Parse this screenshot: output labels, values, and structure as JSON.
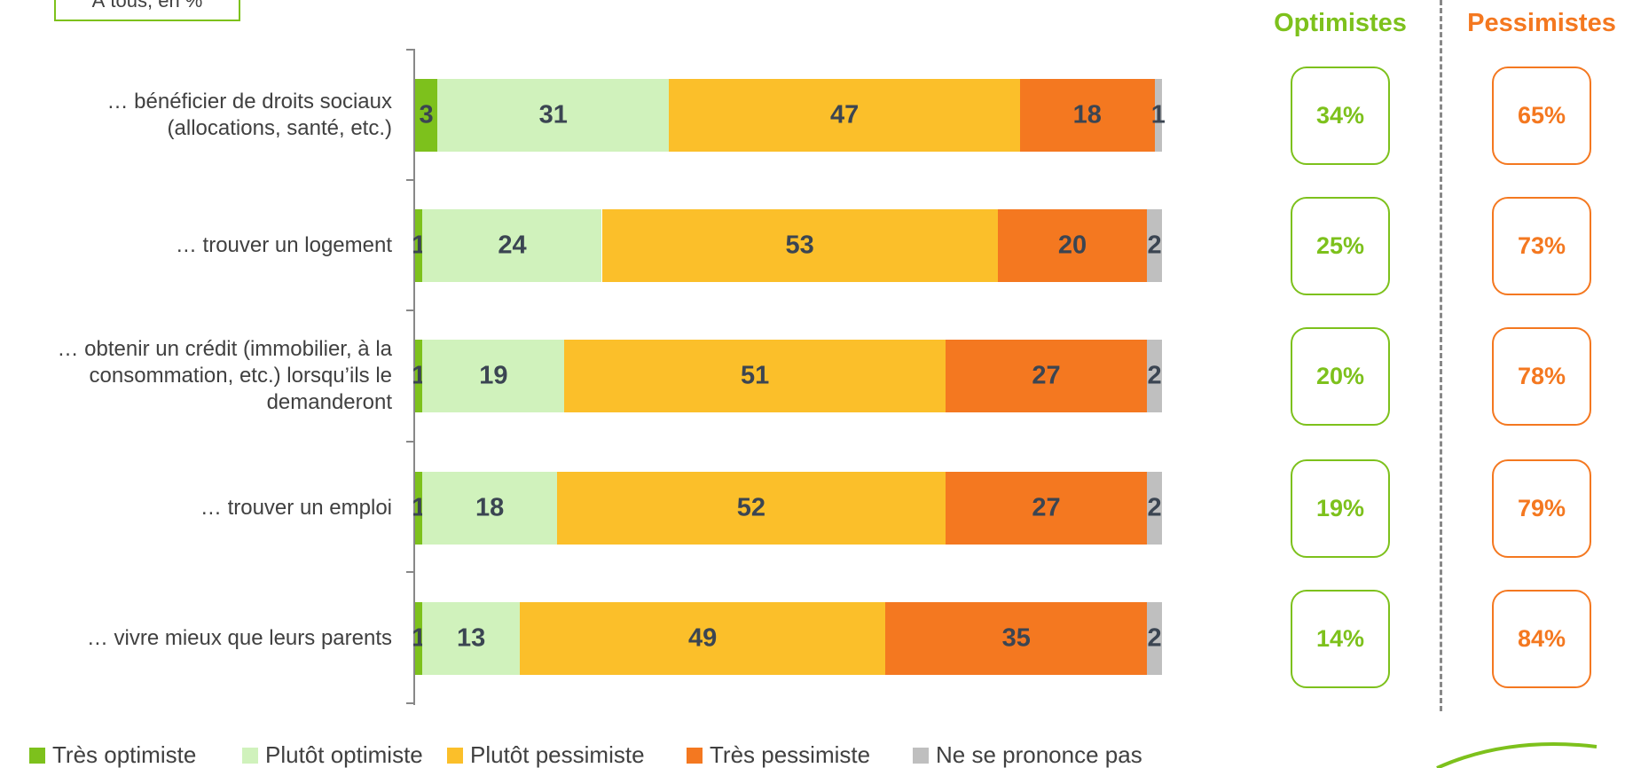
{
  "chart_data": {
    "type": "stacked-bar-horizontal",
    "subtitle": "À tous, en %",
    "categories": [
      "… bénéficier de droits sociaux (allocations, santé, etc.)",
      "… trouver un logement",
      "… obtenir un crédit (immobilier, à la consommation, etc.) lorsqu’ils le demanderont",
      "… trouver un emploi",
      "… vivre mieux que leurs parents"
    ],
    "xlim": [
      0,
      100
    ],
    "series": [
      {
        "name": "Très optimiste",
        "color": "#7dc11c",
        "values": [
          3,
          1,
          1,
          1,
          1
        ]
      },
      {
        "name": "Plutôt optimiste",
        "color": "#d0f2bc",
        "values": [
          31,
          24,
          19,
          18,
          13
        ]
      },
      {
        "name": "Plutôt pessimiste",
        "color": "#fbbf2a",
        "values": [
          47,
          53,
          51,
          52,
          49
        ]
      },
      {
        "name": "Très pessimiste",
        "color": "#f47820",
        "values": [
          18,
          20,
          27,
          27,
          35
        ]
      },
      {
        "name": "Ne se prononce pas",
        "color": "#bfbfbf",
        "values": [
          1,
          2,
          2,
          2,
          2
        ]
      }
    ],
    "summary": [
      {
        "name": "Optimistes",
        "color": "#7dc11c",
        "values": [
          34,
          25,
          20,
          19,
          14
        ],
        "value_labels": [
          "34%",
          "25%",
          "20%",
          "19%",
          "14%"
        ]
      },
      {
        "name": "Pessimistes",
        "color": "#f47820",
        "values": [
          65,
          73,
          78,
          79,
          84
        ],
        "value_labels": [
          "65%",
          "73%",
          "78%",
          "79%",
          "84%"
        ]
      }
    ]
  }
}
